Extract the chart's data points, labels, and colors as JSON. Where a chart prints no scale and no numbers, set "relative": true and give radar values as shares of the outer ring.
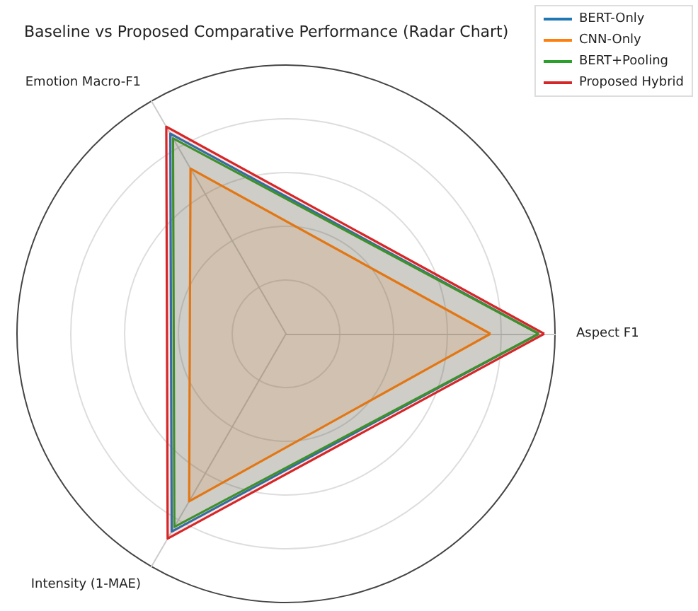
{
  "chart_data": {
    "type": "radar",
    "title": "Baseline vs Proposed Comparative Performance (Radar Chart)",
    "categories": [
      "Aspect F1",
      "Intensity (1-MAE)",
      "Emotion Macro-F1"
    ],
    "relative": true,
    "grid": true,
    "legend": "top right",
    "marker": "none",
    "series": [
      {
        "name": "BERT-Only",
        "color": "#1f77b4",
        "values": [
          0.94,
          0.85,
          0.86
        ]
      },
      {
        "name": "CNN-Only",
        "color": "#ff7f0e",
        "values": [
          0.76,
          0.72,
          0.71
        ]
      },
      {
        "name": "BERT+Pooling",
        "color": "#2ca02c",
        "values": [
          0.94,
          0.83,
          0.84
        ]
      },
      {
        "name": "Proposed Hybrid",
        "color": "#d62728",
        "values": [
          0.96,
          0.88,
          0.89
        ]
      }
    ]
  }
}
